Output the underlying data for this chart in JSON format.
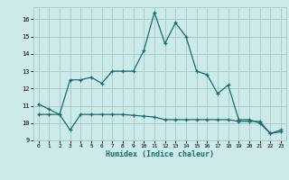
{
  "title": "",
  "xlabel": "Humidex (Indice chaleur)",
  "background_color": "#cceaea",
  "grid_color": "#aacccc",
  "line_color": "#1a6b6b",
  "xlim": [
    -0.5,
    23.5
  ],
  "ylim": [
    9.0,
    16.7
  ],
  "yticks": [
    9,
    10,
    11,
    12,
    13,
    14,
    15,
    16
  ],
  "xticks": [
    0,
    1,
    2,
    3,
    4,
    5,
    6,
    7,
    8,
    9,
    10,
    11,
    12,
    13,
    14,
    15,
    16,
    17,
    18,
    19,
    20,
    21,
    22,
    23
  ],
  "line1_x": [
    0,
    1,
    2,
    3,
    4,
    5,
    6,
    7,
    8,
    9,
    10,
    11,
    12,
    13,
    14,
    15,
    16,
    17,
    18,
    19,
    20,
    21,
    22,
    23
  ],
  "line1_y": [
    11.1,
    10.8,
    10.5,
    12.5,
    12.5,
    12.65,
    12.3,
    13.0,
    13.0,
    13.0,
    14.2,
    16.4,
    14.6,
    15.8,
    15.0,
    13.0,
    12.8,
    11.7,
    12.2,
    10.2,
    10.2,
    10.0,
    9.4,
    9.5
  ],
  "line2_x": [
    0,
    1,
    2,
    3,
    4,
    5,
    6,
    7,
    8,
    9,
    10,
    11,
    12,
    13,
    14,
    15,
    16,
    17,
    18,
    19,
    20,
    21,
    22,
    23
  ],
  "line2_y": [
    10.5,
    10.5,
    10.5,
    9.6,
    10.5,
    10.5,
    10.5,
    10.5,
    10.5,
    10.45,
    10.4,
    10.35,
    10.2,
    10.2,
    10.2,
    10.2,
    10.2,
    10.2,
    10.2,
    10.1,
    10.1,
    10.1,
    9.4,
    9.6
  ]
}
